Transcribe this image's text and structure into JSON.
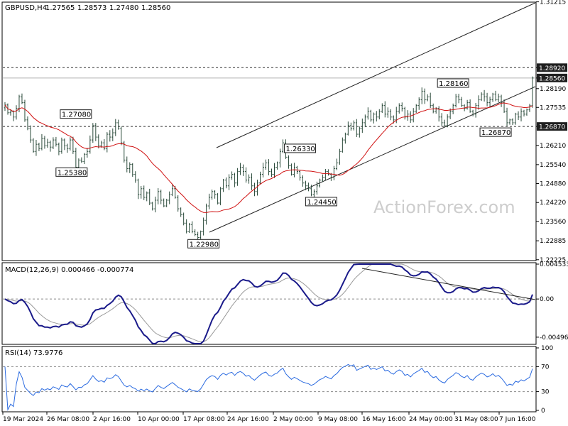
{
  "chart_data": [
    {
      "type": "candlestick",
      "title": "GBPUSD,H4",
      "ohlc": [
        "1.27565",
        "1.28573",
        "1.27480",
        "1.28560"
      ],
      "ylim": [
        1.2222,
        1.3118
      ],
      "y_ticks": [
        "1.31215",
        "1.28920",
        "1.28560",
        "1.28190",
        "1.27535",
        "1.26870",
        "1.26210",
        "1.25540",
        "1.24880",
        "1.24220",
        "1.23560",
        "1.22885",
        "1.22225"
      ],
      "x_labels": [
        "19 Mar 2024",
        "26 Mar 08:00",
        "2 Apr 16:00",
        "10 Apr 00:00",
        "17 Apr 08:00",
        "24 Apr 16:00",
        "2 May 00:00",
        "9 May 08:00",
        "16 May 16:00",
        "24 May 00:00",
        "31 May 08:00",
        "7 Jun 16:00"
      ],
      "annotations": [
        {
          "text": "1.27080",
          "value": 1.2708,
          "bar": 25
        },
        {
          "text": "1.25380",
          "value": 1.2538,
          "bar": 30
        },
        {
          "text": "1.22980",
          "value": 1.2298,
          "bar": 75
        },
        {
          "text": "1.26330",
          "value": 1.2633,
          "bar": 104
        },
        {
          "text": "1.24450",
          "value": 1.2445,
          "bar": 115
        },
        {
          "text": "1.28160",
          "value": 1.2816,
          "bar": 158
        },
        {
          "text": "1.26870",
          "value": 1.2687,
          "bar": 180
        }
      ],
      "price_tags": [
        {
          "text": "1.28920",
          "value": 1.2892
        },
        {
          "text": "1.28560",
          "value": 1.2856
        },
        {
          "text": "1.26870",
          "value": 1.2687
        }
      ],
      "closes": [
        1.2762,
        1.2735,
        1.2738,
        1.272,
        1.275,
        1.279,
        1.277,
        1.271,
        1.268,
        1.264,
        1.26,
        1.2625,
        1.261,
        1.2645,
        1.262,
        1.2632,
        1.2615,
        1.264,
        1.2625,
        1.26,
        1.264,
        1.262,
        1.261,
        1.264,
        1.26,
        1.2545,
        1.257,
        1.2565,
        1.259,
        1.26,
        1.264,
        1.269,
        1.265,
        1.262,
        1.263,
        1.261,
        1.266,
        1.265,
        1.2665,
        1.27,
        1.268,
        1.263,
        1.257,
        1.254,
        1.2555,
        1.252,
        1.25,
        1.245,
        1.247,
        1.244,
        1.2455,
        1.242,
        1.24,
        1.243,
        1.246,
        1.243,
        1.241,
        1.243,
        1.245,
        1.247,
        1.244,
        1.24,
        1.238,
        1.235,
        1.232,
        1.2345,
        1.232,
        1.231,
        1.23,
        1.232,
        1.236,
        1.241,
        1.244,
        1.246,
        1.245,
        1.242,
        1.247,
        1.25,
        1.248,
        1.251,
        1.252,
        1.249,
        1.253,
        1.2545,
        1.253,
        1.25,
        1.251,
        1.248,
        1.246,
        1.249,
        1.252,
        1.2545,
        1.256,
        1.253,
        1.252,
        1.2545,
        1.256,
        1.26,
        1.263,
        1.258,
        1.255,
        1.252,
        1.2545,
        1.253,
        1.251,
        1.249,
        1.248,
        1.247,
        1.245,
        1.246,
        1.248,
        1.25,
        1.251,
        1.253,
        1.252,
        1.251,
        1.254,
        1.256,
        1.26,
        1.264,
        1.266,
        1.269,
        1.268,
        1.27,
        1.266,
        1.268,
        1.27,
        1.272,
        1.274,
        1.271,
        1.273,
        1.272,
        1.274,
        1.276,
        1.273,
        1.274,
        1.272,
        1.271,
        1.274,
        1.276,
        1.275,
        1.272,
        1.273,
        1.271,
        1.274,
        1.276,
        1.278,
        1.281,
        1.278,
        1.279,
        1.276,
        1.274,
        1.275,
        1.272,
        1.27,
        1.269,
        1.272,
        1.274,
        1.276,
        1.279,
        1.278,
        1.276,
        1.275,
        1.277,
        1.274,
        1.273,
        1.276,
        1.278,
        1.28,
        1.279,
        1.277,
        1.278,
        1.28,
        1.278,
        1.279,
        1.277,
        1.274,
        1.27,
        1.271,
        1.27,
        1.273,
        1.272,
        1.274,
        1.273,
        1.2745,
        1.276,
        1.2856
      ]
    },
    {
      "type": "line",
      "title": "MACD(12,26,9) 0.000466 -0.000774",
      "y_ticks": [
        "0.004533",
        "0.00",
        "-0.00496"
      ]
    },
    {
      "type": "line",
      "title": "RSI(14) 73.9776",
      "y_ticks": [
        "100",
        "70",
        "30",
        "0"
      ]
    }
  ],
  "watermark": "ActionForex.com",
  "colors": {
    "candles": "#2a4a3a",
    "sma": "#d01010",
    "macd": "#1a1a8a",
    "signal": "#9a9a9a",
    "rsi": "#2a6ae0",
    "grid_dotted": "#8a8a8a"
  }
}
